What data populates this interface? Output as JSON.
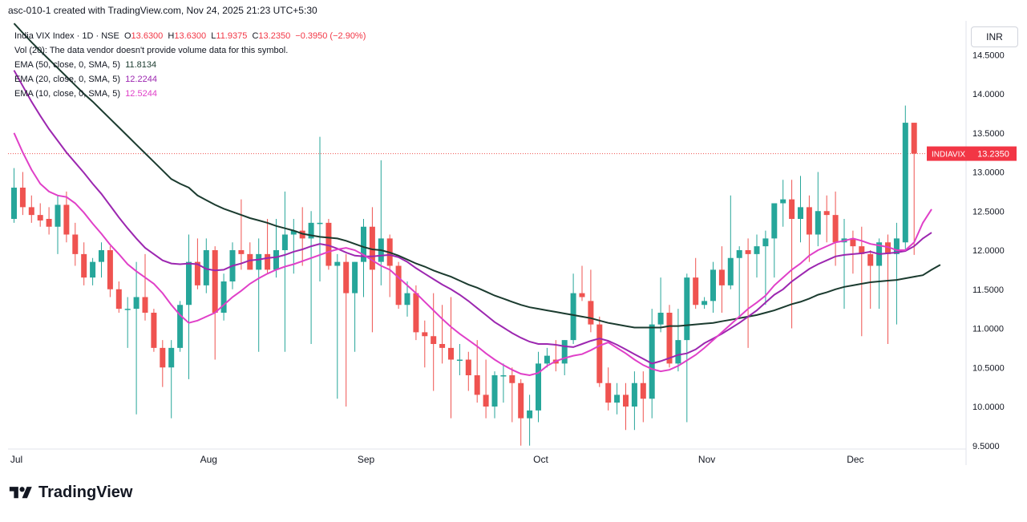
{
  "header": {
    "created_text": "asc-010-1 created with TradingView.com, Nov 24, 2025 21:23 UTC+5:30"
  },
  "legend": {
    "symbol": "India VIX Index · 1D · NSE",
    "ohlc": {
      "o_label": "O",
      "o": "13.6300",
      "h_label": "H",
      "h": "13.6300",
      "l_label": "L",
      "l": "11.9375",
      "c_label": "C",
      "c": "13.2350",
      "change": "−0.3950 (−2.90%)"
    },
    "volume_line": "Vol (20): The data vendor doesn't provide volume data for this symbol.",
    "ema50_label": "EMA (50, close, 0, SMA, 5)",
    "ema50_value": "11.8134",
    "ema20_label": "EMA (20, close, 0, SMA, 5)",
    "ema20_value": "12.2244",
    "ema10_label": "EMA (10, close, 0, SMA, 5)",
    "ema10_value": "12.5244"
  },
  "currency": "INR",
  "brand": {
    "name": "TradingView"
  },
  "colors": {
    "up": "#26a69a",
    "down": "#ef5350",
    "ema50": "#1b3b2f",
    "ema20": "#9c27b0",
    "ema10": "#e040c8",
    "badge_bg": "#f23645",
    "text": "#131722",
    "axis_text": "#131722"
  },
  "chart_data": {
    "type": "candlestick",
    "title": "India VIX Index · 1D · NSE",
    "ylim": [
      9.45,
      14.7
    ],
    "y_ticks": [
      "14.5000",
      "14.0000",
      "13.5000",
      "13.0000",
      "12.5000",
      "12.0000",
      "11.5000",
      "11.0000",
      "10.5000",
      "10.0000",
      "9.5000"
    ],
    "y_tick_values": [
      14.5,
      14.0,
      13.5,
      13.0,
      12.5,
      12.0,
      11.5,
      11.0,
      10.5,
      10.0,
      9.5
    ],
    "x_ticks": [
      {
        "label": "Jul",
        "index": 0
      },
      {
        "label": "Aug",
        "index": 22
      },
      {
        "label": "Sep",
        "index": 40
      },
      {
        "label": "Oct",
        "index": 60
      },
      {
        "label": "Nov",
        "index": 79
      },
      {
        "label": "Dec",
        "index": 96
      }
    ],
    "last_price_label": "INDIAVIX",
    "last_price_value": "13.2350",
    "last_price": 13.235,
    "candles": [
      {
        "o": 12.4,
        "h": 13.05,
        "l": 12.35,
        "c": 12.8
      },
      {
        "o": 12.8,
        "h": 13.0,
        "l": 12.45,
        "c": 12.55
      },
      {
        "o": 12.55,
        "h": 12.7,
        "l": 12.35,
        "c": 12.45
      },
      {
        "o": 12.45,
        "h": 12.6,
        "l": 12.3,
        "c": 12.38
      },
      {
        "o": 12.4,
        "h": 12.55,
        "l": 12.2,
        "c": 12.3
      },
      {
        "o": 12.3,
        "h": 12.7,
        "l": 11.95,
        "c": 12.58
      },
      {
        "o": 12.58,
        "h": 12.75,
        "l": 12.1,
        "c": 12.2
      },
      {
        "o": 12.2,
        "h": 12.35,
        "l": 11.8,
        "c": 11.95
      },
      {
        "o": 11.95,
        "h": 12.1,
        "l": 11.55,
        "c": 11.65
      },
      {
        "o": 11.65,
        "h": 11.9,
        "l": 11.55,
        "c": 11.85
      },
      {
        "o": 11.85,
        "h": 12.1,
        "l": 11.65,
        "c": 12.0
      },
      {
        "o": 12.0,
        "h": 12.05,
        "l": 11.4,
        "c": 11.5
      },
      {
        "o": 11.5,
        "h": 11.6,
        "l": 11.2,
        "c": 11.25
      },
      {
        "o": 11.25,
        "h": 11.4,
        "l": 10.75,
        "c": 11.25
      },
      {
        "o": 11.25,
        "h": 11.85,
        "l": 9.9,
        "c": 11.4
      },
      {
        "o": 11.4,
        "h": 11.95,
        "l": 11.1,
        "c": 11.2
      },
      {
        "o": 11.2,
        "h": 11.25,
        "l": 10.7,
        "c": 10.75
      },
      {
        "o": 10.75,
        "h": 10.85,
        "l": 10.25,
        "c": 10.5
      },
      {
        "o": 10.5,
        "h": 10.85,
        "l": 9.85,
        "c": 10.75
      },
      {
        "o": 10.75,
        "h": 11.35,
        "l": 10.7,
        "c": 11.3
      },
      {
        "o": 11.3,
        "h": 12.2,
        "l": 10.35,
        "c": 11.85
      },
      {
        "o": 11.85,
        "h": 12.15,
        "l": 11.5,
        "c": 11.55
      },
      {
        "o": 11.55,
        "h": 12.15,
        "l": 11.45,
        "c": 12.0
      },
      {
        "o": 12.0,
        "h": 12.05,
        "l": 10.6,
        "c": 11.2
      },
      {
        "o": 11.2,
        "h": 11.7,
        "l": 11.1,
        "c": 11.6
      },
      {
        "o": 11.6,
        "h": 12.1,
        "l": 11.5,
        "c": 12.0
      },
      {
        "o": 12.0,
        "h": 12.65,
        "l": 11.75,
        "c": 11.95
      },
      {
        "o": 11.95,
        "h": 12.1,
        "l": 11.75,
        "c": 11.75
      },
      {
        "o": 11.75,
        "h": 12.15,
        "l": 10.7,
        "c": 11.95
      },
      {
        "o": 11.95,
        "h": 12.4,
        "l": 11.7,
        "c": 11.75
      },
      {
        "o": 11.75,
        "h": 12.4,
        "l": 11.65,
        "c": 12.0
      },
      {
        "o": 12.0,
        "h": 12.75,
        "l": 10.7,
        "c": 12.2
      },
      {
        "o": 12.2,
        "h": 12.4,
        "l": 11.7,
        "c": 12.25
      },
      {
        "o": 12.25,
        "h": 12.55,
        "l": 11.8,
        "c": 12.15
      },
      {
        "o": 12.15,
        "h": 12.5,
        "l": 10.8,
        "c": 12.35
      },
      {
        "o": 12.35,
        "h": 13.45,
        "l": 11.6,
        "c": 12.35
      },
      {
        "o": 12.35,
        "h": 12.4,
        "l": 11.75,
        "c": 11.8
      },
      {
        "o": 11.8,
        "h": 11.95,
        "l": 10.1,
        "c": 11.85
      },
      {
        "o": 11.85,
        "h": 11.95,
        "l": 10.0,
        "c": 11.45
      },
      {
        "o": 11.45,
        "h": 11.85,
        "l": 10.7,
        "c": 11.85
      },
      {
        "o": 11.85,
        "h": 12.4,
        "l": 11.4,
        "c": 12.3
      },
      {
        "o": 12.3,
        "h": 12.55,
        "l": 10.95,
        "c": 11.75
      },
      {
        "o": 11.85,
        "h": 13.15,
        "l": 11.55,
        "c": 12.15
      },
      {
        "o": 12.15,
        "h": 12.2,
        "l": 11.4,
        "c": 11.8
      },
      {
        "o": 11.8,
        "h": 11.85,
        "l": 11.25,
        "c": 11.3
      },
      {
        "o": 11.3,
        "h": 11.6,
        "l": 11.15,
        "c": 11.45
      },
      {
        "o": 11.45,
        "h": 11.55,
        "l": 10.85,
        "c": 10.95
      },
      {
        "o": 10.95,
        "h": 11.1,
        "l": 10.5,
        "c": 10.9
      },
      {
        "o": 10.9,
        "h": 11.45,
        "l": 10.2,
        "c": 10.8
      },
      {
        "o": 10.8,
        "h": 11.3,
        "l": 10.55,
        "c": 10.75
      },
      {
        "o": 10.75,
        "h": 11.4,
        "l": 9.85,
        "c": 10.6
      },
      {
        "o": 10.6,
        "h": 10.8,
        "l": 10.4,
        "c": 10.6
      },
      {
        "o": 10.6,
        "h": 10.7,
        "l": 10.2,
        "c": 10.4
      },
      {
        "o": 10.4,
        "h": 10.85,
        "l": 10.05,
        "c": 10.15
      },
      {
        "o": 10.15,
        "h": 10.6,
        "l": 9.85,
        "c": 10.0
      },
      {
        "o": 10.0,
        "h": 10.45,
        "l": 9.85,
        "c": 10.4
      },
      {
        "o": 10.4,
        "h": 10.55,
        "l": 10.05,
        "c": 10.4
      },
      {
        "o": 10.4,
        "h": 10.5,
        "l": 9.8,
        "c": 10.3
      },
      {
        "o": 10.3,
        "h": 10.35,
        "l": 9.5,
        "c": 9.85
      },
      {
        "o": 9.85,
        "h": 10.15,
        "l": 9.5,
        "c": 9.95
      },
      {
        "o": 9.95,
        "h": 10.7,
        "l": 9.8,
        "c": 10.55
      },
      {
        "o": 10.55,
        "h": 10.75,
        "l": 10.5,
        "c": 10.65
      },
      {
        "o": 10.6,
        "h": 10.85,
        "l": 10.45,
        "c": 10.55
      },
      {
        "o": 10.55,
        "h": 10.85,
        "l": 10.4,
        "c": 10.85
      },
      {
        "o": 10.85,
        "h": 11.7,
        "l": 10.8,
        "c": 11.45
      },
      {
        "o": 11.45,
        "h": 11.8,
        "l": 11.35,
        "c": 11.4
      },
      {
        "o": 11.35,
        "h": 11.75,
        "l": 10.95,
        "c": 11.05
      },
      {
        "o": 11.05,
        "h": 11.15,
        "l": 10.25,
        "c": 10.3
      },
      {
        "o": 10.3,
        "h": 10.5,
        "l": 9.95,
        "c": 10.05
      },
      {
        "o": 10.05,
        "h": 10.3,
        "l": 9.9,
        "c": 10.15
      },
      {
        "o": 10.15,
        "h": 10.3,
        "l": 9.7,
        "c": 10.0
      },
      {
        "o": 10.0,
        "h": 10.45,
        "l": 9.7,
        "c": 10.3
      },
      {
        "o": 10.3,
        "h": 10.45,
        "l": 9.8,
        "c": 10.1
      },
      {
        "o": 10.1,
        "h": 11.25,
        "l": 9.85,
        "c": 11.05
      },
      {
        "o": 11.05,
        "h": 11.65,
        "l": 10.95,
        "c": 11.2
      },
      {
        "o": 11.2,
        "h": 11.3,
        "l": 10.5,
        "c": 10.55
      },
      {
        "o": 10.55,
        "h": 11.25,
        "l": 10.45,
        "c": 10.85
      },
      {
        "o": 10.85,
        "h": 11.7,
        "l": 9.8,
        "c": 11.65
      },
      {
        "o": 11.65,
        "h": 11.9,
        "l": 11.25,
        "c": 11.3
      },
      {
        "o": 11.3,
        "h": 11.4,
        "l": 11.25,
        "c": 11.35
      },
      {
        "o": 11.35,
        "h": 11.85,
        "l": 11.2,
        "c": 11.75
      },
      {
        "o": 11.75,
        "h": 12.05,
        "l": 11.2,
        "c": 11.55
      },
      {
        "o": 11.55,
        "h": 12.7,
        "l": 11.5,
        "c": 11.9
      },
      {
        "o": 11.9,
        "h": 12.05,
        "l": 11.15,
        "c": 12.0
      },
      {
        "o": 12.0,
        "h": 12.15,
        "l": 10.75,
        "c": 11.95
      },
      {
        "o": 11.95,
        "h": 12.2,
        "l": 11.65,
        "c": 12.05
      },
      {
        "o": 12.05,
        "h": 12.25,
        "l": 11.3,
        "c": 12.15
      },
      {
        "o": 12.15,
        "h": 12.6,
        "l": 11.65,
        "c": 12.6
      },
      {
        "o": 12.6,
        "h": 12.9,
        "l": 12.3,
        "c": 12.65
      },
      {
        "o": 12.65,
        "h": 12.9,
        "l": 11.0,
        "c": 12.4
      },
      {
        "o": 12.4,
        "h": 12.95,
        "l": 12.1,
        "c": 12.55
      },
      {
        "o": 12.55,
        "h": 12.7,
        "l": 11.85,
        "c": 12.2
      },
      {
        "o": 12.2,
        "h": 13.0,
        "l": 12.05,
        "c": 12.5
      },
      {
        "o": 12.5,
        "h": 12.7,
        "l": 12.1,
        "c": 12.45
      },
      {
        "o": 12.45,
        "h": 12.75,
        "l": 11.8,
        "c": 12.1
      },
      {
        "o": 12.1,
        "h": 12.4,
        "l": 11.25,
        "c": 12.15
      },
      {
        "o": 12.15,
        "h": 12.25,
        "l": 11.7,
        "c": 12.05
      },
      {
        "o": 12.05,
        "h": 12.3,
        "l": 10.9,
        "c": 11.95
      },
      {
        "o": 11.95,
        "h": 12.0,
        "l": 11.25,
        "c": 11.8
      },
      {
        "o": 11.8,
        "h": 12.15,
        "l": 11.25,
        "c": 12.1
      },
      {
        "o": 12.1,
        "h": 12.2,
        "l": 10.8,
        "c": 11.95
      },
      {
        "o": 11.95,
        "h": 12.35,
        "l": 11.05,
        "c": 12.15
      },
      {
        "o": 12.1,
        "h": 13.85,
        "l": 12.0,
        "c": 13.63
      },
      {
        "o": 13.63,
        "h": 13.63,
        "l": 11.94,
        "c": 13.235
      }
    ],
    "ema50": [
      14.9,
      14.78,
      14.66,
      14.55,
      14.44,
      14.33,
      14.22,
      14.11,
      14.0,
      13.9,
      13.79,
      13.68,
      13.57,
      13.46,
      13.35,
      13.24,
      13.13,
      13.02,
      12.91,
      12.85,
      12.8,
      12.7,
      12.64,
      12.58,
      12.53,
      12.49,
      12.45,
      12.41,
      12.38,
      12.35,
      12.31,
      12.28,
      12.25,
      12.21,
      12.19,
      12.17,
      12.16,
      12.15,
      12.12,
      12.08,
      12.04,
      12.01,
      12.0,
      11.97,
      11.93,
      11.88,
      11.83,
      11.79,
      11.74,
      11.7,
      11.66,
      11.61,
      11.56,
      11.52,
      11.47,
      11.42,
      11.38,
      11.34,
      11.3,
      11.27,
      11.25,
      11.23,
      11.21,
      11.19,
      11.17,
      11.15,
      11.13,
      11.1,
      11.07,
      11.05,
      11.03,
      11.01,
      11.01,
      11.01,
      11.01,
      11.03,
      11.03,
      11.04,
      11.05,
      11.06,
      11.07,
      11.09,
      11.11,
      11.13,
      11.15,
      11.17,
      11.2,
      11.23,
      11.27,
      11.31,
      11.34,
      11.38,
      11.43,
      11.46,
      11.5,
      11.53,
      11.55,
      11.57,
      11.59,
      11.6,
      11.61,
      11.62,
      11.64,
      11.66,
      11.68,
      11.75,
      11.8134
    ],
    "ema20": [
      14.3,
      14.1,
      13.9,
      13.72,
      13.55,
      13.4,
      13.25,
      13.12,
      12.99,
      12.85,
      12.72,
      12.57,
      12.42,
      12.28,
      12.15,
      12.03,
      11.95,
      11.87,
      11.83,
      11.82,
      11.83,
      11.82,
      11.76,
      11.74,
      11.75,
      11.8,
      11.83,
      11.87,
      11.88,
      11.9,
      11.91,
      11.94,
      11.98,
      12.01,
      12.05,
      12.08,
      12.06,
      12.02,
      11.97,
      11.93,
      11.92,
      11.92,
      11.93,
      11.94,
      11.91,
      11.85,
      11.77,
      11.7,
      11.63,
      11.56,
      11.5,
      11.43,
      11.35,
      11.26,
      11.17,
      11.08,
      11.01,
      10.94,
      10.88,
      10.83,
      10.8,
      10.8,
      10.79,
      10.77,
      10.76,
      10.8,
      10.84,
      10.87,
      10.84,
      10.79,
      10.73,
      10.67,
      10.61,
      10.55,
      10.58,
      10.62,
      10.66,
      10.68,
      10.73,
      10.81,
      10.87,
      10.93,
      11.0,
      11.07,
      11.15,
      11.23,
      11.33,
      11.43,
      11.5,
      11.6,
      11.68,
      11.76,
      11.82,
      11.87,
      11.92,
      11.94,
      11.95,
      11.96,
      11.98,
      11.95,
      11.96,
      11.97,
      11.99,
      12.05,
      12.15,
      12.2244
    ],
    "ema10": [
      13.5,
      13.25,
      13.03,
      12.85,
      12.75,
      12.7,
      12.68,
      12.6,
      12.48,
      12.34,
      12.21,
      12.07,
      11.95,
      11.82,
      11.73,
      11.65,
      11.57,
      11.45,
      11.3,
      11.17,
      11.07,
      11.1,
      11.15,
      11.2,
      11.3,
      11.4,
      11.48,
      11.57,
      11.64,
      11.7,
      11.75,
      11.79,
      11.82,
      11.86,
      11.9,
      11.94,
      11.98,
      12.01,
      12.03,
      12.0,
      11.94,
      11.87,
      11.8,
      11.75,
      11.65,
      11.55,
      11.45,
      11.34,
      11.23,
      11.12,
      11.02,
      10.93,
      10.85,
      10.77,
      10.68,
      10.6,
      10.53,
      10.47,
      10.42,
      10.4,
      10.43,
      10.52,
      10.58,
      10.62,
      10.65,
      10.67,
      10.72,
      10.78,
      10.82,
      10.75,
      10.68,
      10.6,
      10.53,
      10.48,
      10.45,
      10.47,
      10.52,
      10.59,
      10.66,
      10.75,
      10.85,
      10.95,
      11.05,
      11.15,
      11.25,
      11.33,
      11.42,
      11.55,
      11.65,
      11.75,
      11.83,
      11.93,
      12.0,
      12.05,
      12.1,
      12.12,
      12.15,
      12.12,
      12.08,
      12.06,
      12.04,
      12.0,
      12.0,
      12.1,
      12.35,
      12.5244
    ]
  }
}
